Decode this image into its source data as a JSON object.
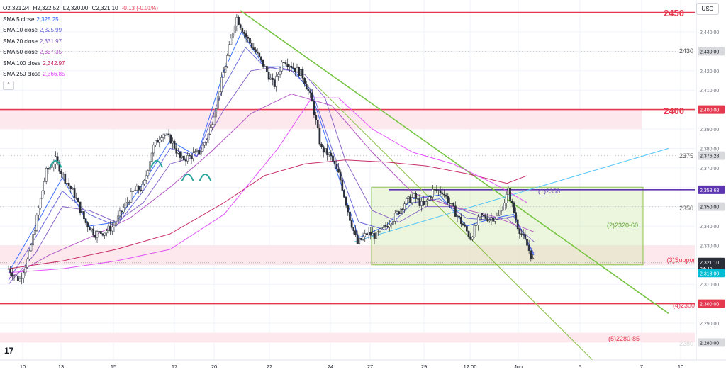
{
  "legend": {
    "ohlc": {
      "o": "O2,321.24",
      "h": "H2,322.52",
      "l": "L2,320.00",
      "c": "C2,321.10",
      "chg": "-0.13 (-0.01%)"
    },
    "smas": [
      {
        "label": "SMA 5 close",
        "value": "2,325.25",
        "color": "#2962ff"
      },
      {
        "label": "SMA 10 close",
        "value": "2,325.99",
        "color": "#5b5bd6"
      },
      {
        "label": "SMA 20 close",
        "value": "2,331.97",
        "color": "#7e57c2"
      },
      {
        "label": "SMA 50 close",
        "value": "2,337.35",
        "color": "#ab47bc"
      },
      {
        "label": "SMA 100 close",
        "value": "2,342.97",
        "color": "#c2185b"
      },
      {
        "label": "SMA 250 close",
        "value": "2,366.85",
        "color": "#e040fb"
      }
    ],
    "collapse": "^"
  },
  "currency": "USD",
  "chart_data": {
    "type": "candlestick",
    "symbol_ohlc": {
      "open": 2321.24,
      "high": 2322.52,
      "low": 2320.0,
      "close": 2321.1,
      "change": -0.13,
      "change_pct": -0.01
    },
    "ylim": [
      2275,
      2455
    ],
    "y_ticks": [
      2290,
      2300,
      2310,
      2320,
      2330,
      2340,
      2350,
      2360,
      2370,
      2380,
      2390,
      2400,
      2410,
      2420,
      2430,
      2440
    ],
    "x_ticks": [
      "10",
      "13",
      "15",
      "17",
      "20",
      "22",
      "24",
      "27",
      "29",
      "12:00",
      "Jun",
      "5",
      "7",
      "10"
    ],
    "price_path": [
      [
        0,
        2318
      ],
      [
        0.8,
        2312
      ],
      [
        1.5,
        2324
      ],
      [
        2.1,
        2344
      ],
      [
        2.8,
        2368
      ],
      [
        3.5,
        2374
      ],
      [
        4.2,
        2364
      ],
      [
        4.9,
        2356
      ],
      [
        5.7,
        2342
      ],
      [
        6.4,
        2336
      ],
      [
        7.1,
        2337
      ],
      [
        7.8,
        2340
      ],
      [
        8.6,
        2350
      ],
      [
        9.3,
        2358
      ],
      [
        10,
        2360
      ],
      [
        10.7,
        2380
      ],
      [
        11.4,
        2388
      ],
      [
        12.1,
        2384
      ],
      [
        12.8,
        2374
      ],
      [
        13.5,
        2376
      ],
      [
        14.2,
        2378
      ],
      [
        14.9,
        2388
      ],
      [
        15.5,
        2405
      ],
      [
        16.2,
        2426
      ],
      [
        16.9,
        2448
      ],
      [
        17.6,
        2438
      ],
      [
        18.3,
        2430
      ],
      [
        19,
        2422
      ],
      [
        19.7,
        2412
      ],
      [
        20.4,
        2426
      ],
      [
        21.1,
        2422
      ],
      [
        21.8,
        2418
      ],
      [
        22.5,
        2405
      ],
      [
        23.2,
        2380
      ],
      [
        23.9,
        2376
      ],
      [
        24.6,
        2365
      ],
      [
        25.3,
        2345
      ],
      [
        25.9,
        2331
      ],
      [
        26.6,
        2336
      ],
      [
        27.3,
        2335
      ],
      [
        28,
        2340
      ],
      [
        28.7,
        2345
      ],
      [
        29.4,
        2352
      ],
      [
        30.1,
        2355
      ],
      [
        30.8,
        2350
      ],
      [
        31.5,
        2358
      ],
      [
        32.2,
        2358
      ],
      [
        32.9,
        2350
      ],
      [
        33.6,
        2342
      ],
      [
        34.3,
        2334
      ],
      [
        35,
        2345
      ],
      [
        35.7,
        2344
      ],
      [
        36.4,
        2345
      ],
      [
        37.1,
        2358
      ],
      [
        37.8,
        2340
      ],
      [
        38.5,
        2330
      ],
      [
        39,
        2321.1
      ]
    ],
    "sma_paths": {
      "SMA 5 close": [
        [
          0,
          2316
        ],
        [
          2,
          2340
        ],
        [
          4,
          2365
        ],
        [
          6,
          2340
        ],
        [
          8,
          2342
        ],
        [
          10,
          2362
        ],
        [
          12,
          2384
        ],
        [
          14,
          2376
        ],
        [
          16,
          2420
        ],
        [
          17.3,
          2440
        ],
        [
          19,
          2422
        ],
        [
          21,
          2422
        ],
        [
          22.5,
          2408
        ],
        [
          24,
          2376
        ],
        [
          26,
          2334
        ],
        [
          28,
          2340
        ],
        [
          30,
          2354
        ],
        [
          32,
          2356
        ],
        [
          34,
          2340
        ],
        [
          36,
          2344
        ],
        [
          37.5,
          2346
        ],
        [
          39,
          2325
        ]
      ],
      "SMA 10 close": [
        [
          0,
          2312
        ],
        [
          2,
          2334
        ],
        [
          4,
          2358
        ],
        [
          6,
          2346
        ],
        [
          8,
          2340
        ],
        [
          10,
          2358
        ],
        [
          12,
          2380
        ],
        [
          14,
          2376
        ],
        [
          16,
          2412
        ],
        [
          17.6,
          2432
        ],
        [
          19,
          2422
        ],
        [
          21,
          2420
        ],
        [
          22.5,
          2410
        ],
        [
          24,
          2380
        ],
        [
          26,
          2342
        ],
        [
          28,
          2338
        ],
        [
          30,
          2352
        ],
        [
          32,
          2354
        ],
        [
          34,
          2344
        ],
        [
          36,
          2343
        ],
        [
          37.5,
          2345
        ],
        [
          39,
          2326
        ]
      ],
      "SMA 20 close": [
        [
          0,
          2310
        ],
        [
          2,
          2326
        ],
        [
          4,
          2350
        ],
        [
          6,
          2348
        ],
        [
          8,
          2342
        ],
        [
          10,
          2352
        ],
        [
          12,
          2372
        ],
        [
          14,
          2376
        ],
        [
          16,
          2400
        ],
        [
          18,
          2420
        ],
        [
          20,
          2422
        ],
        [
          22,
          2418
        ],
        [
          23.5,
          2406
        ],
        [
          25,
          2374
        ],
        [
          27,
          2348
        ],
        [
          29,
          2342
        ],
        [
          31,
          2350
        ],
        [
          33,
          2350
        ],
        [
          35,
          2345
        ],
        [
          37,
          2344
        ],
        [
          39,
          2332
        ]
      ],
      "SMA 50 close": [
        [
          0,
          2313
        ],
        [
          3,
          2325
        ],
        [
          6,
          2334
        ],
        [
          9,
          2344
        ],
        [
          12,
          2360
        ],
        [
          15,
          2378
        ],
        [
          18,
          2398
        ],
        [
          21,
          2408
        ],
        [
          24,
          2402
        ],
        [
          27,
          2378
        ],
        [
          30,
          2357
        ],
        [
          33,
          2350
        ],
        [
          36,
          2345
        ],
        [
          39,
          2337
        ]
      ],
      "SMA 100 close": [
        [
          0,
          2318
        ],
        [
          4,
          2322
        ],
        [
          8,
          2328
        ],
        [
          12,
          2336
        ],
        [
          16,
          2352
        ],
        [
          19,
          2366
        ],
        [
          22,
          2372
        ],
        [
          25,
          2374
        ],
        [
          28,
          2373
        ],
        [
          31,
          2371
        ],
        [
          34,
          2367
        ],
        [
          37,
          2362
        ],
        [
          38.5,
          2366
        ]
      ],
      "SMA 250 close": [
        [
          0,
          2316
        ],
        [
          4,
          2318
        ],
        [
          8,
          2322
        ],
        [
          12,
          2328
        ],
        [
          16,
          2346
        ],
        [
          20,
          2380
        ],
        [
          22.5,
          2406
        ],
        [
          24.5,
          2406
        ],
        [
          27,
          2390
        ],
        [
          30,
          2378
        ],
        [
          33,
          2372
        ],
        [
          36,
          2362
        ],
        [
          38.5,
          2352
        ]
      ]
    },
    "horizontal_levels": [
      {
        "price": 2450,
        "label": "2450",
        "axis_label": "",
        "color": "#e53950"
      },
      {
        "price": 2400,
        "label": "2400",
        "axis_label": "2,400.00",
        "color": "#e53950"
      },
      {
        "price": 2358.68,
        "label": "(1)2358",
        "axis_label": "2,358.68",
        "color": "#5e35b1"
      },
      {
        "price": 2300,
        "label": "(4)2300",
        "axis_label": "2,300.00",
        "color": "#e53950"
      }
    ],
    "zones": [
      {
        "from": 2390,
        "to": 2400,
        "label": ""
      },
      {
        "from": 2320,
        "to": 2330,
        "label": "(3)Support"
      },
      {
        "from": 2280,
        "to": 2285,
        "label": "(5)2280-85"
      }
    ],
    "range_box": {
      "from": 2320,
      "to": 2360,
      "label": "(2)2320-60"
    },
    "trendlines": [
      {
        "from": [
          17.2,
          2451
        ],
        "to": [
          49,
          2295
        ],
        "color": "#76c442"
      },
      {
        "from": [
          22.5,
          2415
        ],
        "to": [
          43.5,
          2270
        ],
        "color": "#8bc34a"
      },
      {
        "from": [
          25.7,
          2332
        ],
        "to": [
          49,
          2380
        ],
        "color": "#4fc3f7"
      }
    ],
    "annotations": [
      "2430",
      "2375",
      "2350",
      "2280"
    ],
    "axis_labels": [
      {
        "price": 2430,
        "text": "2,430.00",
        "style": "grey"
      },
      {
        "price": 2376.28,
        "text": "2,376.28",
        "style": "grey"
      },
      {
        "price": 2350,
        "text": "2,350.00",
        "style": "grey"
      },
      {
        "price": 2280,
        "text": "2,280.00",
        "style": "grey"
      },
      {
        "price": 2321.1,
        "text": "2,321.10",
        "style": "dark",
        "sub": "34:49"
      },
      {
        "price": 2318,
        "text": "2,318.00",
        "style": "teal"
      }
    ],
    "pattern_arcs": [
      [
        3.5,
        2372
      ],
      [
        11.0,
        2372
      ],
      [
        13.3,
        2365
      ],
      [
        14.6,
        2365
      ]
    ],
    "grid": true,
    "logo": "17"
  }
}
